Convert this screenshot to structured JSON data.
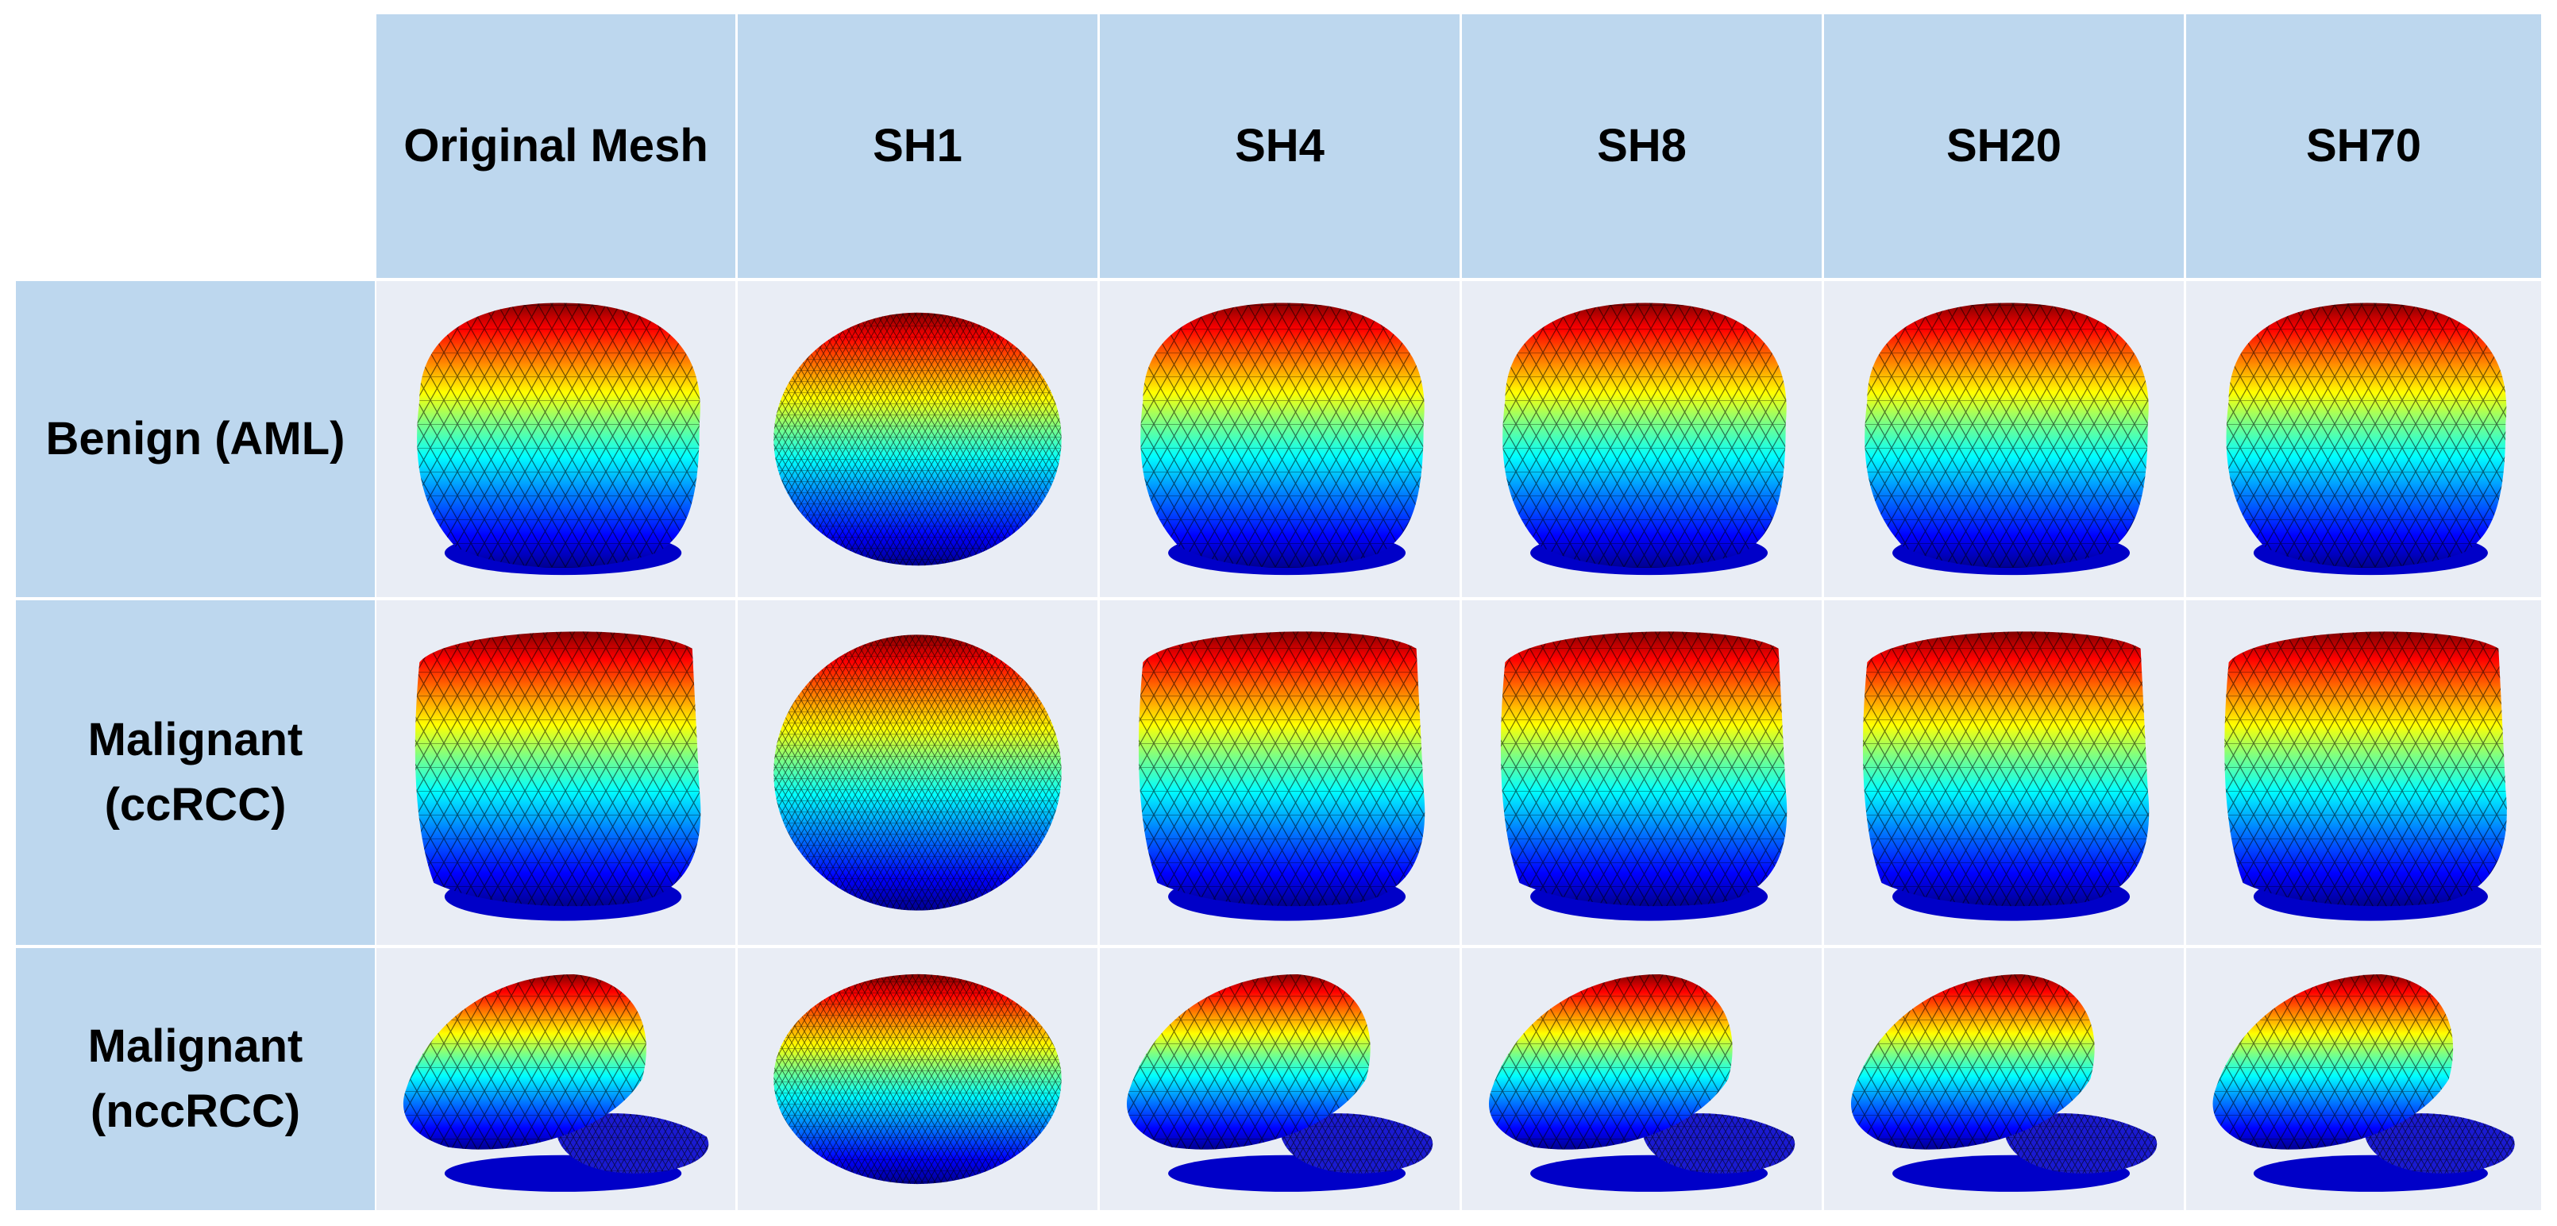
{
  "column_headers": [
    "Original Mesh",
    "SH1",
    "SH4",
    "SH8",
    "SH20",
    "SH70"
  ],
  "row_headers": [
    "Benign (AML)",
    "Malignant (ccRCC)",
    "Malignant (nccRCC)"
  ],
  "colors": {
    "header_fill": "#bdd7ee",
    "cell_fill": "#e9edf5",
    "gridline": "#ffffff",
    "mesh_colormap": [
      "#00008f",
      "#0000ff",
      "#0080ff",
      "#00ffff",
      "#80ff80",
      "#ffff00",
      "#ff8000",
      "#ff0000",
      "#800000"
    ]
  },
  "cells": [
    [
      "mesh-aml-original",
      "mesh-aml-sh1",
      "mesh-aml-sh4",
      "mesh-aml-sh8",
      "mesh-aml-sh20",
      "mesh-aml-sh70"
    ],
    [
      "mesh-ccrcc-original",
      "mesh-ccrcc-sh1",
      "mesh-ccrcc-sh4",
      "mesh-ccrcc-sh8",
      "mesh-ccrcc-sh20",
      "mesh-ccrcc-sh70"
    ],
    [
      "mesh-nccrcc-original",
      "mesh-nccrcc-sh1",
      "mesh-nccrcc-sh4",
      "mesh-nccrcc-sh8",
      "mesh-nccrcc-sh20",
      "mesh-nccrcc-sh70"
    ]
  ]
}
